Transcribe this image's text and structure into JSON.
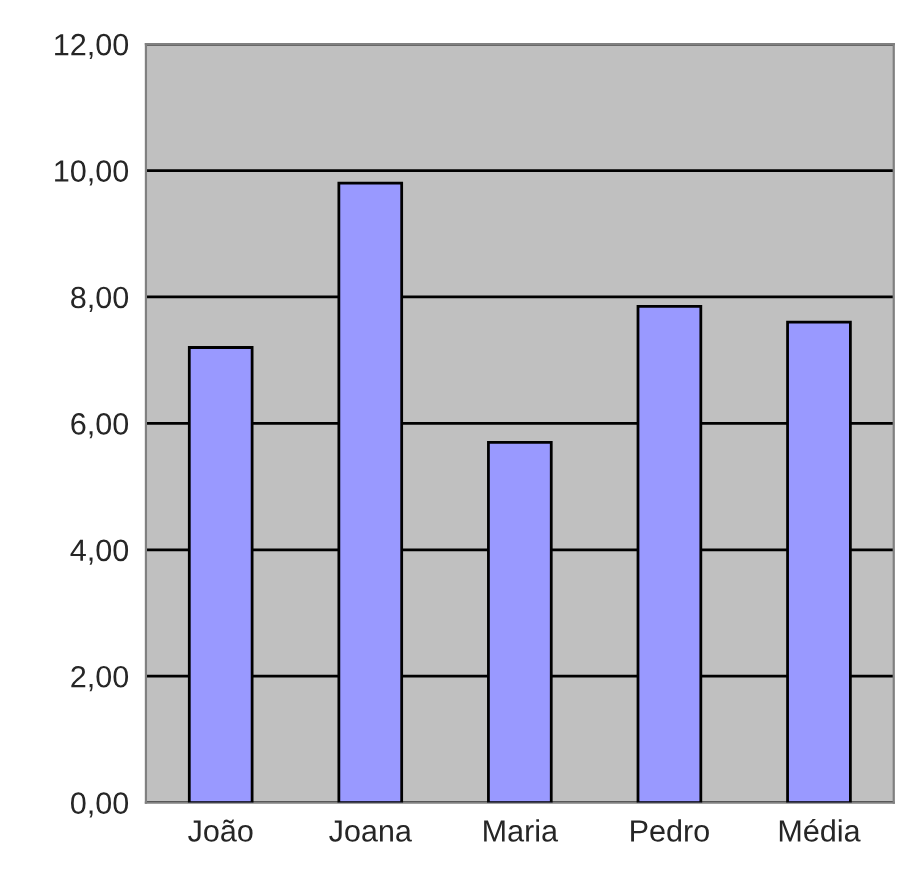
{
  "chart_data": {
    "type": "bar",
    "categories": [
      "João",
      "Joana",
      "Maria",
      "Pedro",
      "Média"
    ],
    "values": [
      7.2,
      9.8,
      5.7,
      7.85,
      7.6
    ],
    "color": "#9999ff",
    "ylim": [
      0,
      12
    ],
    "yticks": [
      {
        "value": 0,
        "label": "0,00"
      },
      {
        "value": 2,
        "label": "2,00"
      },
      {
        "value": 4,
        "label": "4,00"
      },
      {
        "value": 6,
        "label": "6,00"
      },
      {
        "value": 8,
        "label": "8,00"
      },
      {
        "value": 10,
        "label": "10,00"
      },
      {
        "value": 12,
        "label": "12,00"
      }
    ],
    "grid": "y"
  }
}
